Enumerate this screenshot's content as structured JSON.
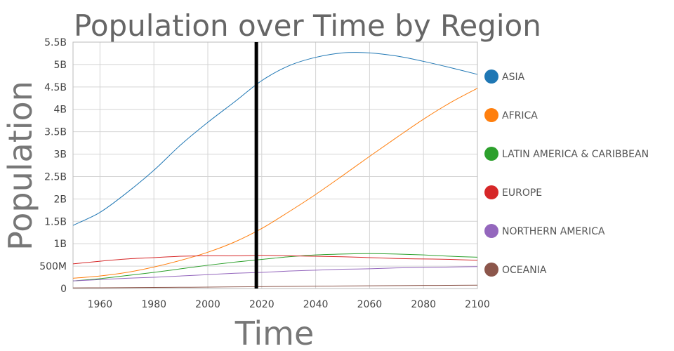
{
  "chart_data": {
    "type": "line",
    "title": "Population over Time by Region",
    "xlabel": "Time",
    "ylabel": "Population",
    "xlim": [
      1950,
      2100
    ],
    "ylim": [
      0,
      5500000000
    ],
    "x_ticks": [
      1960,
      1980,
      2000,
      2020,
      2040,
      2060,
      2080,
      2100
    ],
    "y_ticks": [
      {
        "value": 0,
        "label": "0"
      },
      {
        "value": 500000000,
        "label": "500M"
      },
      {
        "value": 1000000000,
        "label": "1B"
      },
      {
        "value": 1500000000,
        "label": "1.5B"
      },
      {
        "value": 2000000000,
        "label": "2B"
      },
      {
        "value": 2500000000,
        "label": "2.5B"
      },
      {
        "value": 3000000000,
        "label": "3B"
      },
      {
        "value": 3500000000,
        "label": "3.5B"
      },
      {
        "value": 4000000000,
        "label": "4B"
      },
      {
        "value": 4500000000,
        "label": "4.5B"
      },
      {
        "value": 5000000000,
        "label": "5B"
      },
      {
        "value": 5500000000,
        "label": "5.5B"
      }
    ],
    "grid": true,
    "legend_position": "right",
    "marker_year": 2018,
    "x": [
      1950,
      1960,
      1970,
      1980,
      1990,
      2000,
      2010,
      2020,
      2030,
      2040,
      2050,
      2060,
      2070,
      2080,
      2090,
      2100
    ],
    "series": [
      {
        "name": "ASIA",
        "color": "#1f77b4",
        "values": [
          1410000000.0,
          1700000000.0,
          2140000000.0,
          2640000000.0,
          3210000000.0,
          3710000000.0,
          4170000000.0,
          4640000000.0,
          4970000000.0,
          5160000000.0,
          5260000000.0,
          5260000000.0,
          5190000000.0,
          5070000000.0,
          4930000000.0,
          4780000000.0
        ]
      },
      {
        "name": "AFRICA",
        "color": "#ff7f0e",
        "values": [
          230000000.0,
          280000000.0,
          360000000.0,
          480000000.0,
          630000000.0,
          810000000.0,
          1040000000.0,
          1340000000.0,
          1710000000.0,
          2100000000.0,
          2520000000.0,
          2950000000.0,
          3370000000.0,
          3780000000.0,
          4150000000.0,
          4470000000.0
        ]
      },
      {
        "name": "LATIN AMERICA & CARIBBEAN",
        "color": "#2ca02c",
        "values": [
          170000000.0,
          220000000.0,
          290000000.0,
          360000000.0,
          440000000.0,
          520000000.0,
          590000000.0,
          650000000.0,
          710000000.0,
          750000000.0,
          770000000.0,
          780000000.0,
          770000000.0,
          750000000.0,
          720000000.0,
          700000000.0
        ]
      },
      {
        "name": "EUROPE",
        "color": "#d62728",
        "values": [
          550000000.0,
          610000000.0,
          660000000.0,
          690000000.0,
          720000000.0,
          730000000.0,
          730000000.0,
          740000000.0,
          730000000.0,
          720000000.0,
          710000000.0,
          690000000.0,
          670000000.0,
          660000000.0,
          650000000.0,
          630000000.0
        ]
      },
      {
        "name": "NORTHERN AMERICA",
        "color": "#9467bd",
        "values": [
          170000000.0,
          200000000.0,
          230000000.0,
          250000000.0,
          280000000.0,
          310000000.0,
          340000000.0,
          360000000.0,
          390000000.0,
          410000000.0,
          430000000.0,
          440000000.0,
          460000000.0,
          470000000.0,
          480000000.0,
          490000000.0
        ]
      },
      {
        "name": "OCEANIA",
        "color": "#8c564b",
        "values": [
          13000000.0,
          16000000.0,
          20000000.0,
          23000000.0,
          27000000.0,
          31000000.0,
          37000000.0,
          42000000.0,
          48000000.0,
          53000000.0,
          57000000.0,
          61000000.0,
          65000000.0,
          68000000.0,
          71000000.0,
          74000000.0
        ]
      }
    ]
  }
}
